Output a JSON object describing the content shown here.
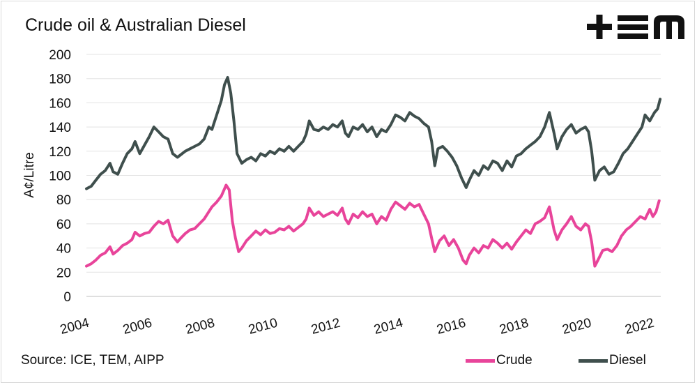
{
  "title": "Crude oil & Australian Diesel",
  "logo": {
    "name": "tem-logo",
    "text": "TEM"
  },
  "source": "Source: ICE, TEM, AIPP",
  "colors": {
    "crude": "#e8449a",
    "diesel": "#3f4f4d",
    "text": "#111111"
  },
  "chart_data": {
    "type": "line",
    "title": "Crude oil & Australian Diesel",
    "xlabel": "",
    "ylabel": "A¢/Litre",
    "xlim": [
      2004,
      2022.3
    ],
    "ylim": [
      0,
      200
    ],
    "yticks": [
      "0",
      "20",
      "40",
      "60",
      "80",
      "100",
      "120",
      "140",
      "160",
      "180",
      "200"
    ],
    "xticks": [
      "2004",
      "2006",
      "2008",
      "2010",
      "2012",
      "2014",
      "2016",
      "2018",
      "2020",
      "2022"
    ],
    "grid": true,
    "legend_position": "bottom-right",
    "series": [
      {
        "name": "Crude",
        "color": "#e8449a",
        "points": [
          [
            2004.0,
            25
          ],
          [
            2004.15,
            27
          ],
          [
            2004.3,
            30
          ],
          [
            2004.45,
            34
          ],
          [
            2004.6,
            36
          ],
          [
            2004.75,
            41
          ],
          [
            2004.85,
            35
          ],
          [
            2005.0,
            38
          ],
          [
            2005.15,
            42
          ],
          [
            2005.3,
            44
          ],
          [
            2005.45,
            47
          ],
          [
            2005.55,
            53
          ],
          [
            2005.7,
            50
          ],
          [
            2005.85,
            52
          ],
          [
            2006.0,
            53
          ],
          [
            2006.15,
            58
          ],
          [
            2006.3,
            62
          ],
          [
            2006.45,
            60
          ],
          [
            2006.6,
            63
          ],
          [
            2006.75,
            50
          ],
          [
            2006.9,
            45
          ],
          [
            2007.0,
            48
          ],
          [
            2007.15,
            52
          ],
          [
            2007.3,
            55
          ],
          [
            2007.45,
            56
          ],
          [
            2007.6,
            60
          ],
          [
            2007.75,
            64
          ],
          [
            2007.9,
            70
          ],
          [
            2008.0,
            74
          ],
          [
            2008.15,
            78
          ],
          [
            2008.3,
            83
          ],
          [
            2008.45,
            92
          ],
          [
            2008.55,
            88
          ],
          [
            2008.65,
            62
          ],
          [
            2008.75,
            48
          ],
          [
            2008.85,
            37
          ],
          [
            2008.95,
            40
          ],
          [
            2009.1,
            46
          ],
          [
            2009.25,
            50
          ],
          [
            2009.4,
            54
          ],
          [
            2009.55,
            51
          ],
          [
            2009.7,
            55
          ],
          [
            2009.85,
            52
          ],
          [
            2010.0,
            53
          ],
          [
            2010.15,
            56
          ],
          [
            2010.3,
            55
          ],
          [
            2010.45,
            58
          ],
          [
            2010.6,
            54
          ],
          [
            2010.75,
            57
          ],
          [
            2010.9,
            60
          ],
          [
            2011.0,
            64
          ],
          [
            2011.1,
            73
          ],
          [
            2011.25,
            67
          ],
          [
            2011.4,
            70
          ],
          [
            2011.55,
            66
          ],
          [
            2011.7,
            68
          ],
          [
            2011.85,
            70
          ],
          [
            2012.0,
            67
          ],
          [
            2012.15,
            73
          ],
          [
            2012.25,
            64
          ],
          [
            2012.35,
            60
          ],
          [
            2012.5,
            68
          ],
          [
            2012.65,
            65
          ],
          [
            2012.8,
            70
          ],
          [
            2012.95,
            66
          ],
          [
            2013.1,
            68
          ],
          [
            2013.25,
            60
          ],
          [
            2013.4,
            66
          ],
          [
            2013.55,
            63
          ],
          [
            2013.7,
            72
          ],
          [
            2013.85,
            78
          ],
          [
            2014.0,
            75
          ],
          [
            2014.15,
            72
          ],
          [
            2014.3,
            77
          ],
          [
            2014.45,
            74
          ],
          [
            2014.6,
            76
          ],
          [
            2014.75,
            68
          ],
          [
            2014.9,
            60
          ],
          [
            2015.0,
            48
          ],
          [
            2015.1,
            37
          ],
          [
            2015.25,
            46
          ],
          [
            2015.4,
            50
          ],
          [
            2015.55,
            42
          ],
          [
            2015.7,
            47
          ],
          [
            2015.85,
            40
          ],
          [
            2016.0,
            30
          ],
          [
            2016.1,
            27
          ],
          [
            2016.2,
            34
          ],
          [
            2016.35,
            40
          ],
          [
            2016.5,
            36
          ],
          [
            2016.65,
            42
          ],
          [
            2016.8,
            40
          ],
          [
            2016.95,
            47
          ],
          [
            2017.1,
            44
          ],
          [
            2017.25,
            40
          ],
          [
            2017.4,
            44
          ],
          [
            2017.55,
            39
          ],
          [
            2017.7,
            45
          ],
          [
            2017.85,
            50
          ],
          [
            2018.0,
            55
          ],
          [
            2018.15,
            52
          ],
          [
            2018.3,
            60
          ],
          [
            2018.45,
            62
          ],
          [
            2018.6,
            65
          ],
          [
            2018.75,
            74
          ],
          [
            2018.9,
            55
          ],
          [
            2019.0,
            47
          ],
          [
            2019.15,
            55
          ],
          [
            2019.3,
            60
          ],
          [
            2019.45,
            66
          ],
          [
            2019.6,
            58
          ],
          [
            2019.75,
            55
          ],
          [
            2019.9,
            60
          ],
          [
            2020.0,
            58
          ],
          [
            2020.1,
            45
          ],
          [
            2020.2,
            25
          ],
          [
            2020.3,
            30
          ],
          [
            2020.45,
            38
          ],
          [
            2020.6,
            39
          ],
          [
            2020.75,
            37
          ],
          [
            2020.9,
            42
          ],
          [
            2021.05,
            50
          ],
          [
            2021.2,
            55
          ],
          [
            2021.35,
            58
          ],
          [
            2021.5,
            62
          ],
          [
            2021.65,
            66
          ],
          [
            2021.8,
            64
          ],
          [
            2021.95,
            72
          ],
          [
            2022.05,
            66
          ],
          [
            2022.15,
            70
          ],
          [
            2022.25,
            79
          ]
        ]
      },
      {
        "name": "Diesel",
        "color": "#3f4f4d",
        "points": [
          [
            2004.0,
            89
          ],
          [
            2004.15,
            91
          ],
          [
            2004.3,
            96
          ],
          [
            2004.45,
            101
          ],
          [
            2004.6,
            104
          ],
          [
            2004.75,
            110
          ],
          [
            2004.85,
            103
          ],
          [
            2005.0,
            101
          ],
          [
            2005.15,
            110
          ],
          [
            2005.3,
            118
          ],
          [
            2005.45,
            122
          ],
          [
            2005.55,
            128
          ],
          [
            2005.7,
            118
          ],
          [
            2005.85,
            125
          ],
          [
            2006.0,
            132
          ],
          [
            2006.15,
            140
          ],
          [
            2006.3,
            136
          ],
          [
            2006.45,
            132
          ],
          [
            2006.6,
            130
          ],
          [
            2006.75,
            118
          ],
          [
            2006.9,
            115
          ],
          [
            2007.0,
            117
          ],
          [
            2007.15,
            120
          ],
          [
            2007.3,
            122
          ],
          [
            2007.45,
            124
          ],
          [
            2007.6,
            126
          ],
          [
            2007.75,
            130
          ],
          [
            2007.9,
            140
          ],
          [
            2008.0,
            138
          ],
          [
            2008.15,
            150
          ],
          [
            2008.3,
            162
          ],
          [
            2008.4,
            175
          ],
          [
            2008.5,
            181
          ],
          [
            2008.6,
            168
          ],
          [
            2008.7,
            145
          ],
          [
            2008.8,
            118
          ],
          [
            2008.95,
            110
          ],
          [
            2009.1,
            113
          ],
          [
            2009.25,
            115
          ],
          [
            2009.4,
            112
          ],
          [
            2009.55,
            118
          ],
          [
            2009.7,
            116
          ],
          [
            2009.85,
            120
          ],
          [
            2010.0,
            118
          ],
          [
            2010.15,
            122
          ],
          [
            2010.3,
            120
          ],
          [
            2010.45,
            124
          ],
          [
            2010.6,
            120
          ],
          [
            2010.75,
            124
          ],
          [
            2010.9,
            128
          ],
          [
            2011.0,
            134
          ],
          [
            2011.1,
            145
          ],
          [
            2011.25,
            138
          ],
          [
            2011.4,
            137
          ],
          [
            2011.55,
            140
          ],
          [
            2011.7,
            138
          ],
          [
            2011.85,
            142
          ],
          [
            2012.0,
            140
          ],
          [
            2012.15,
            145
          ],
          [
            2012.25,
            135
          ],
          [
            2012.35,
            132
          ],
          [
            2012.5,
            140
          ],
          [
            2012.65,
            138
          ],
          [
            2012.8,
            142
          ],
          [
            2012.95,
            136
          ],
          [
            2013.1,
            140
          ],
          [
            2013.25,
            132
          ],
          [
            2013.4,
            138
          ],
          [
            2013.55,
            136
          ],
          [
            2013.7,
            142
          ],
          [
            2013.85,
            150
          ],
          [
            2014.0,
            148
          ],
          [
            2014.15,
            145
          ],
          [
            2014.3,
            152
          ],
          [
            2014.45,
            149
          ],
          [
            2014.6,
            147
          ],
          [
            2014.75,
            143
          ],
          [
            2014.9,
            140
          ],
          [
            2015.0,
            128
          ],
          [
            2015.1,
            108
          ],
          [
            2015.2,
            122
          ],
          [
            2015.35,
            124
          ],
          [
            2015.5,
            120
          ],
          [
            2015.65,
            115
          ],
          [
            2015.8,
            108
          ],
          [
            2015.95,
            98
          ],
          [
            2016.1,
            90
          ],
          [
            2016.2,
            96
          ],
          [
            2016.35,
            104
          ],
          [
            2016.5,
            100
          ],
          [
            2016.65,
            108
          ],
          [
            2016.8,
            105
          ],
          [
            2016.95,
            112
          ],
          [
            2017.1,
            110
          ],
          [
            2017.25,
            104
          ],
          [
            2017.4,
            112
          ],
          [
            2017.55,
            107
          ],
          [
            2017.7,
            116
          ],
          [
            2017.85,
            118
          ],
          [
            2018.0,
            122
          ],
          [
            2018.15,
            125
          ],
          [
            2018.3,
            128
          ],
          [
            2018.45,
            132
          ],
          [
            2018.6,
            140
          ],
          [
            2018.75,
            152
          ],
          [
            2018.9,
            135
          ],
          [
            2019.0,
            122
          ],
          [
            2019.15,
            132
          ],
          [
            2019.3,
            138
          ],
          [
            2019.45,
            142
          ],
          [
            2019.6,
            135
          ],
          [
            2019.75,
            138
          ],
          [
            2019.9,
            140
          ],
          [
            2020.0,
            136
          ],
          [
            2020.1,
            120
          ],
          [
            2020.2,
            96
          ],
          [
            2020.35,
            104
          ],
          [
            2020.5,
            107
          ],
          [
            2020.65,
            101
          ],
          [
            2020.8,
            103
          ],
          [
            2020.95,
            110
          ],
          [
            2021.1,
            118
          ],
          [
            2021.25,
            122
          ],
          [
            2021.4,
            128
          ],
          [
            2021.55,
            134
          ],
          [
            2021.7,
            140
          ],
          [
            2021.8,
            150
          ],
          [
            2021.95,
            145
          ],
          [
            2022.1,
            152
          ],
          [
            2022.2,
            155
          ],
          [
            2022.28,
            163
          ]
        ]
      }
    ]
  }
}
